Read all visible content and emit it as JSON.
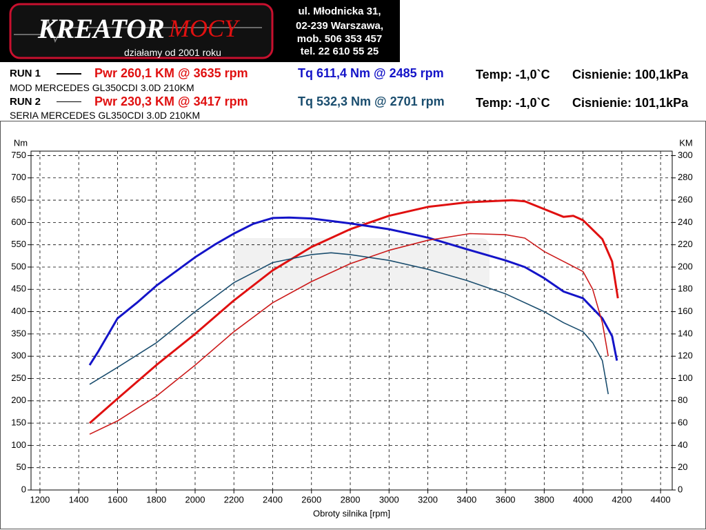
{
  "header": {
    "logo_left": "KREATOR",
    "logo_right": "MOCY",
    "slogan": "działamy od 2001 roku",
    "address": [
      "ul. Młodnicka 31,",
      "02-239  Warszawa,",
      "mob.  506 353 457",
      "tel.  22 610 55 25"
    ]
  },
  "runs": [
    {
      "label": "RUN 1",
      "vehicle": "MOD MERCEDES GL350CDI 3.0D 210KM",
      "temp": "Temp: -1,0`C",
      "pressure": "Cisnienie: 100,1kPa"
    },
    {
      "label": "RUN 2",
      "vehicle": "SERIA MERCEDES GL350CDI 3.0D 210KM",
      "temp": "Temp: -1,0`C",
      "pressure": "Cisnienie: 101,1kPa"
    }
  ],
  "chart_data": {
    "type": "line",
    "x_label": "Obroty silnika [rpm]",
    "y_label": "Nm",
    "y2_label": "KM",
    "xlim": [
      1154,
      4460
    ],
    "ylim": [
      0,
      760
    ],
    "y2lim": [
      0,
      304
    ],
    "xticks": [
      1200,
      1400,
      1600,
      1800,
      2000,
      2200,
      2400,
      2600,
      2800,
      3000,
      3200,
      3400,
      3600,
      3800,
      4000,
      4200,
      4400
    ],
    "yticks": [
      0,
      50,
      100,
      150,
      200,
      250,
      300,
      350,
      400,
      450,
      500,
      550,
      600,
      650,
      700,
      750
    ],
    "y2ticks": [
      0,
      20,
      40,
      60,
      80,
      100,
      120,
      140,
      160,
      180,
      200,
      220,
      240,
      260,
      280,
      300
    ],
    "grid": true,
    "series": [
      {
        "name": "Pwr  260,1 KM @ 3635 rpm",
        "color": "#e01010",
        "axis": "y2",
        "x": [
          1456,
          1600,
          1800,
          2000,
          2200,
          2400,
          2600,
          2800,
          3000,
          3200,
          3400,
          3635,
          3700,
          3800,
          3900,
          3950,
          4000,
          4100,
          4150,
          4180
        ],
        "values": [
          60,
          82,
          112,
          140,
          170,
          197,
          218,
          234,
          246,
          254,
          258,
          260,
          259,
          252,
          245,
          246,
          242,
          225,
          205,
          172
        ]
      },
      {
        "name": "Tq 611,4 Nm @ 2485 rpm",
        "color": "#1414c8",
        "x": [
          1456,
          1500,
          1600,
          1700,
          1800,
          1900,
          2000,
          2100,
          2200,
          2300,
          2400,
          2485,
          2600,
          2800,
          3000,
          3200,
          3400,
          3600,
          3700,
          3800,
          3900,
          4000,
          4100,
          4150,
          4175
        ],
        "values": [
          280,
          310,
          385,
          420,
          458,
          490,
          522,
          550,
          575,
          597,
          610,
          611,
          609,
          598,
          585,
          566,
          540,
          515,
          500,
          475,
          445,
          430,
          385,
          345,
          290
        ]
      },
      {
        "name": "Pwr  230,3 KM @ 3417 rpm",
        "color": "#cc1a1a",
        "axis": "y2",
        "x": [
          1456,
          1600,
          1800,
          2000,
          2200,
          2400,
          2600,
          2800,
          3000,
          3200,
          3417,
          3600,
          3700,
          3800,
          3900,
          4000,
          4050,
          4100,
          4130
        ],
        "values": [
          50,
          62,
          84,
          112,
          142,
          168,
          187,
          203,
          215,
          224,
          230,
          229,
          226,
          214,
          205,
          196,
          180,
          150,
          120
        ]
      },
      {
        "name": "Tq 532,3 Nm @ 2701 rpm",
        "color": "#1a4d6e",
        "x": [
          1456,
          1600,
          1800,
          2000,
          2200,
          2400,
          2600,
          2701,
          2800,
          3000,
          3200,
          3400,
          3600,
          3800,
          3900,
          4000,
          4050,
          4100,
          4130
        ],
        "values": [
          237,
          275,
          330,
          400,
          465,
          510,
          528,
          532,
          528,
          515,
          495,
          470,
          440,
          400,
          375,
          355,
          330,
          290,
          215
        ]
      }
    ]
  }
}
